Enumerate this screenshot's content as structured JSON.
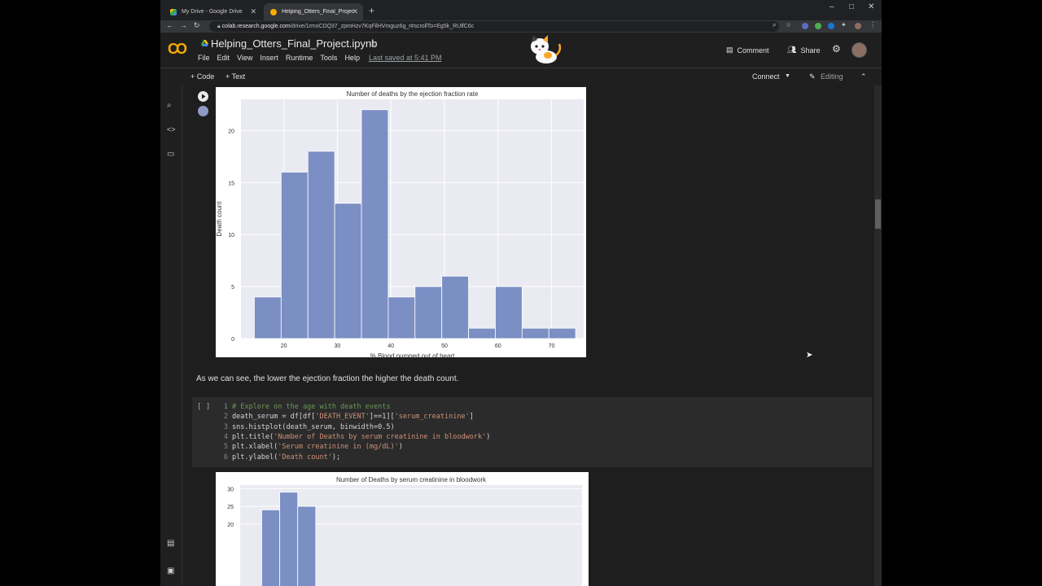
{
  "browser": {
    "tabs": [
      {
        "title": "My Drive - Google Drive",
        "active": false
      },
      {
        "title": "Helping_Otters_Final_Project.ipyn",
        "active": true
      }
    ],
    "new_tab": "+",
    "url_host": "colab.research.google.com",
    "url_path": "/drive/1rmxCDQ37_zpmHzv7KqFilHVmguz6g_r#scrollTo=Eg5k_RUlfC6c",
    "window_controls": [
      "–",
      "□",
      "✕"
    ]
  },
  "colab": {
    "logo": "CO",
    "notebook_title": "Helping_Otters_Final_Project.ipynb",
    "menu": [
      "File",
      "Edit",
      "View",
      "Insert",
      "Runtime",
      "Tools",
      "Help"
    ],
    "last_saved": "Last saved at 5:41 PM",
    "comment_label": "Comment",
    "share_label": "Share",
    "toolbar": {
      "code_label": "+ Code",
      "text_label": "+ Text",
      "connect_label": "Connect",
      "editing_label": "Editing"
    }
  },
  "chart_data": [
    {
      "type": "bar",
      "title": "Number of deaths by the ejection fraction rate",
      "xlabel": "% Blood pumped out of heart",
      "ylabel": "Death count",
      "xticks": [
        20,
        30,
        40,
        50,
        60,
        70
      ],
      "yticks": [
        0,
        5,
        10,
        15,
        20
      ],
      "xlim": [
        12,
        76
      ],
      "ylim": [
        0,
        23
      ],
      "bins": [
        {
          "x0": 14.5,
          "x1": 19.5,
          "value": 4
        },
        {
          "x0": 19.5,
          "x1": 24.5,
          "value": 16
        },
        {
          "x0": 24.5,
          "x1": 29.5,
          "value": 18
        },
        {
          "x0": 29.5,
          "x1": 34.5,
          "value": 13
        },
        {
          "x0": 34.5,
          "x1": 39.5,
          "value": 22
        },
        {
          "x0": 39.5,
          "x1": 44.5,
          "value": 4
        },
        {
          "x0": 44.5,
          "x1": 49.5,
          "value": 5
        },
        {
          "x0": 49.5,
          "x1": 54.5,
          "value": 6
        },
        {
          "x0": 54.5,
          "x1": 59.5,
          "value": 1
        },
        {
          "x0": 59.5,
          "x1": 64.5,
          "value": 5
        },
        {
          "x0": 64.5,
          "x1": 69.5,
          "value": 1
        },
        {
          "x0": 69.5,
          "x1": 74.5,
          "value": 1
        }
      ],
      "bar_color": "#7b8fc4",
      "background": "#eaeaf2",
      "grid": true
    },
    {
      "type": "bar",
      "title": "Number of Deaths by serum creatinine in bloodwork",
      "xlabel": "",
      "ylabel": "",
      "xticks": [],
      "yticks": [
        20,
        25,
        30
      ],
      "xlim": [
        0.0,
        9.5
      ],
      "ylim": [
        0,
        31
      ],
      "bins": [
        {
          "x0": 0.6,
          "x1": 1.1,
          "value": 24
        },
        {
          "x0": 1.1,
          "x1": 1.6,
          "value": 29
        },
        {
          "x0": 1.6,
          "x1": 2.1,
          "value": 25
        }
      ],
      "bar_color": "#7b8fc4",
      "background": "#eaeaf2",
      "grid": true
    }
  ],
  "text_cell": "As we can see, the lower the ejection fraction the higher the death count.",
  "code_cell": {
    "bracket": "[ ]",
    "lines": [
      {
        "n": "1",
        "parts": [
          {
            "t": "# Explore on the age with death events",
            "c": "cm"
          }
        ]
      },
      {
        "n": "2",
        "parts": [
          {
            "t": "death_serum = df[df[",
            "c": ""
          },
          {
            "t": "'DEATH_EVENT'",
            "c": "st"
          },
          {
            "t": "]==1][",
            "c": ""
          },
          {
            "t": "'serum_creatinine'",
            "c": "st"
          },
          {
            "t": "]",
            "c": ""
          }
        ]
      },
      {
        "n": "3",
        "parts": [
          {
            "t": "sns.histplot(death_serum, binwidth=0.5)",
            "c": ""
          }
        ]
      },
      {
        "n": "4",
        "parts": [
          {
            "t": "plt.title(",
            "c": ""
          },
          {
            "t": "'Number of Deaths by serum creatinine in bloodwork'",
            "c": "st"
          },
          {
            "t": ")",
            "c": ""
          }
        ]
      },
      {
        "n": "5",
        "parts": [
          {
            "t": "plt.xlabel(",
            "c": ""
          },
          {
            "t": "'Serum creatinine in (mg/dL)'",
            "c": "st"
          },
          {
            "t": ")",
            "c": ""
          }
        ]
      },
      {
        "n": "6",
        "parts": [
          {
            "t": "plt.ylabel(",
            "c": ""
          },
          {
            "t": "'Death count'",
            "c": "st"
          },
          {
            "t": ");",
            "c": ""
          }
        ]
      }
    ]
  }
}
